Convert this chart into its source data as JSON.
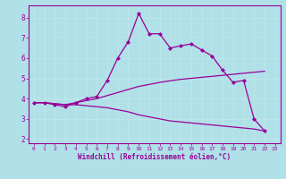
{
  "background_color": "#b0e0e8",
  "grid_color": "#d0f0f0",
  "line_color": "#990099",
  "xlim": [
    -0.5,
    23.5
  ],
  "ylim": [
    1.8,
    8.6
  ],
  "xticks": [
    0,
    1,
    2,
    3,
    4,
    5,
    6,
    7,
    8,
    9,
    10,
    11,
    12,
    13,
    14,
    15,
    16,
    17,
    18,
    19,
    20,
    21,
    22,
    23
  ],
  "yticks": [
    2,
    3,
    4,
    5,
    6,
    7,
    8
  ],
  "xlabel": "Windchill (Refroidissement éolien,°C)",
  "line1_x": [
    0,
    1,
    2,
    3,
    4,
    5,
    6,
    7,
    8,
    9,
    10,
    11,
    12,
    13,
    14,
    15,
    16,
    17,
    18,
    19,
    20,
    21,
    22
  ],
  "line1_y": [
    3.8,
    3.8,
    3.7,
    3.6,
    3.8,
    4.0,
    4.1,
    4.9,
    6.0,
    6.8,
    8.2,
    7.2,
    7.2,
    6.5,
    6.6,
    6.7,
    6.4,
    6.1,
    5.4,
    4.8,
    4.9,
    3.0,
    2.4
  ],
  "line2_x": [
    0,
    1,
    2,
    3,
    4,
    5,
    6,
    7,
    8,
    9,
    10,
    11,
    12,
    13,
    14,
    15,
    16,
    17,
    18,
    19,
    20,
    21,
    22
  ],
  "line2_y": [
    3.8,
    3.8,
    3.75,
    3.7,
    3.8,
    3.9,
    4.0,
    4.15,
    4.3,
    4.45,
    4.6,
    4.7,
    4.8,
    4.88,
    4.95,
    5.0,
    5.05,
    5.1,
    5.15,
    5.2,
    5.25,
    5.3,
    5.35
  ],
  "line3_x": [
    0,
    1,
    2,
    3,
    4,
    5,
    6,
    7,
    8,
    9,
    10,
    11,
    12,
    13,
    14,
    15,
    16,
    17,
    18,
    19,
    20,
    21,
    22
  ],
  "line3_y": [
    3.8,
    3.8,
    3.75,
    3.7,
    3.7,
    3.65,
    3.6,
    3.55,
    3.45,
    3.35,
    3.2,
    3.1,
    3.0,
    2.9,
    2.85,
    2.8,
    2.75,
    2.7,
    2.65,
    2.6,
    2.55,
    2.5,
    2.4
  ],
  "tick_fontsize_x": 4.5,
  "tick_fontsize_y": 5.5,
  "xlabel_fontsize": 5.5
}
